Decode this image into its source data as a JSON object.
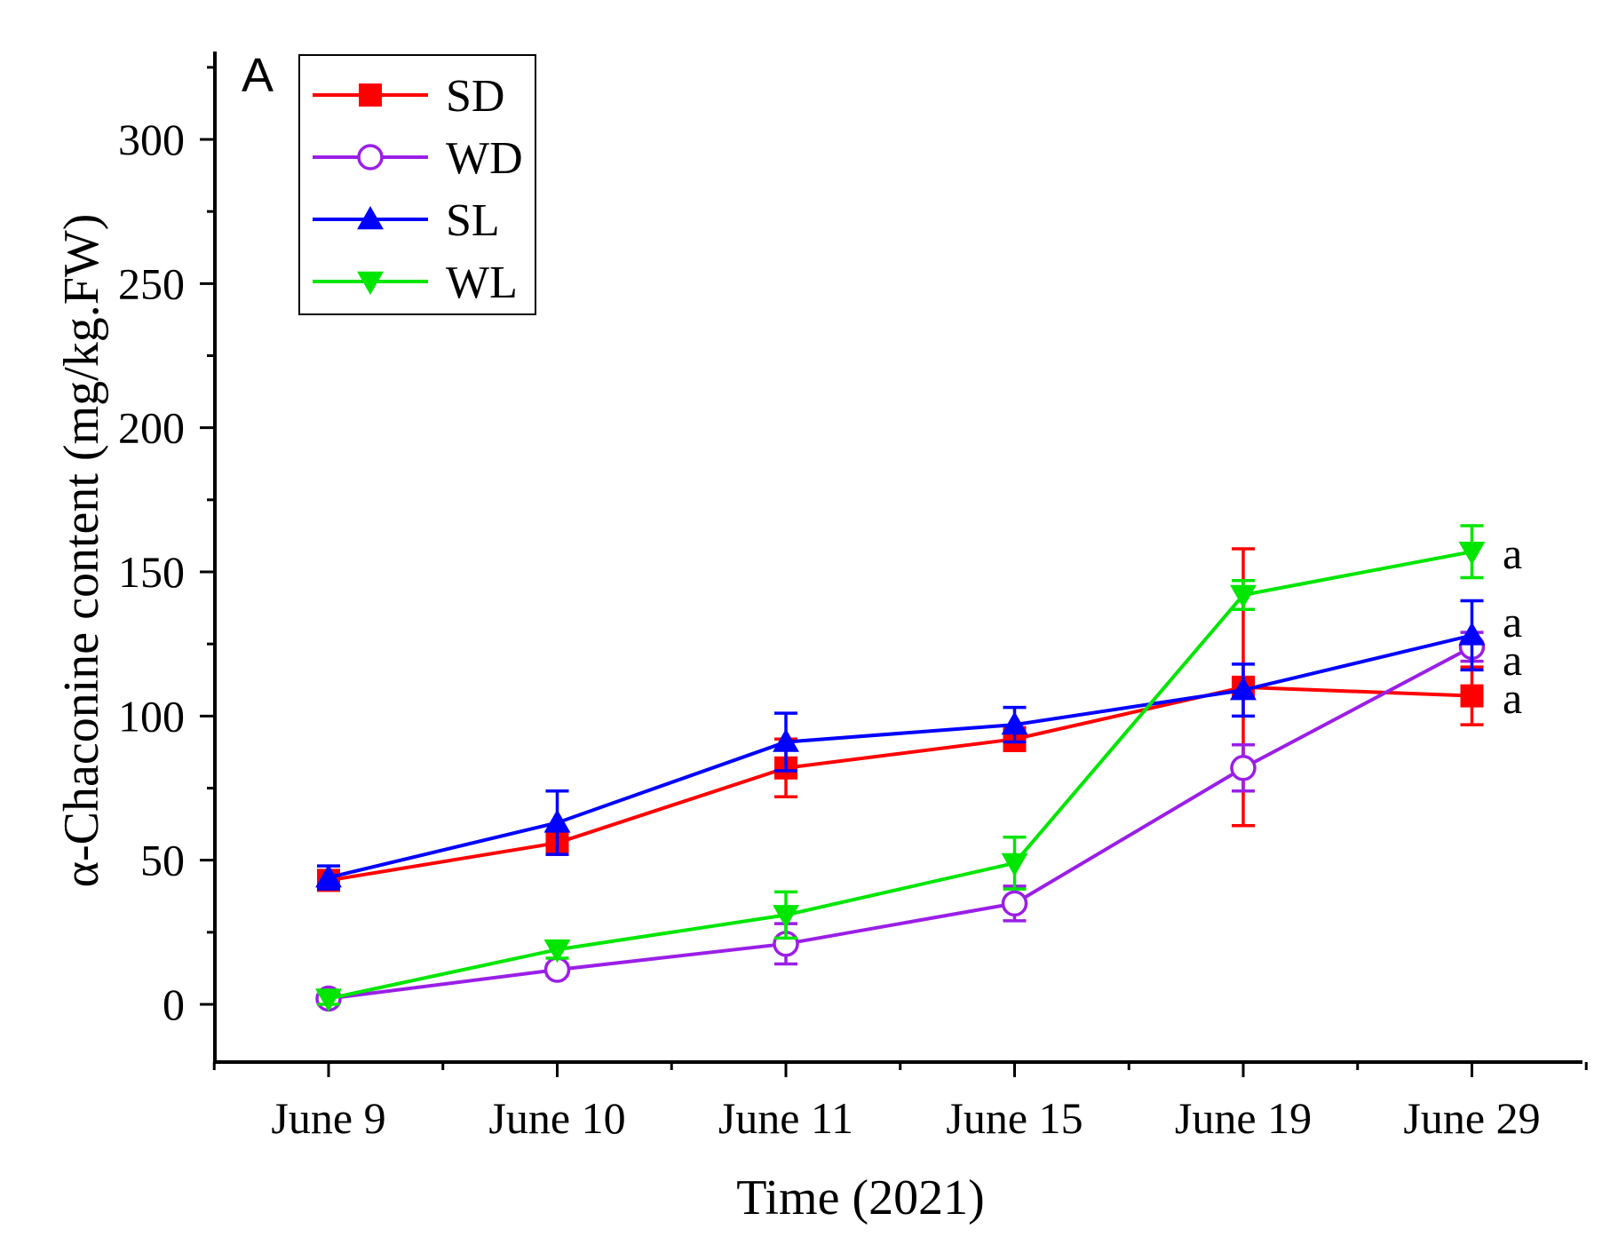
{
  "chart_data": {
    "type": "line",
    "panel_label": "A",
    "xlabel": "Time (2021)",
    "ylabel": "α-Chaconine content (mg/kg.FW)",
    "categories": [
      "June 9",
      "June 10",
      "June 11",
      "June 15",
      "June 19",
      "June 29"
    ],
    "ylim": [
      -20,
      330
    ],
    "yticks": [
      0,
      50,
      100,
      150,
      200,
      250,
      300
    ],
    "yminor_step": 25,
    "grid": false,
    "legend_position": "top-left",
    "series": [
      {
        "name": "SD",
        "color": "#ff0000",
        "marker": "square-filled",
        "values": [
          43,
          56,
          82,
          92,
          110,
          107
        ],
        "errors": [
          2,
          4,
          10,
          4,
          48,
          10
        ],
        "significance": "a"
      },
      {
        "name": "WD",
        "color": "#9a1fe6",
        "marker": "circle-open",
        "values": [
          2,
          12,
          21,
          35,
          82,
          124
        ],
        "errors": [
          1,
          2,
          7,
          6,
          8,
          5
        ],
        "significance": "a"
      },
      {
        "name": "SL",
        "color": "#0000ff",
        "marker": "triangle-up-filled",
        "values": [
          44,
          63,
          91,
          97,
          109,
          128
        ],
        "errors": [
          4,
          11,
          10,
          6,
          9,
          12
        ],
        "significance": "a"
      },
      {
        "name": "WL",
        "color": "#00e600",
        "marker": "triangle-down-filled",
        "values": [
          2,
          19,
          31,
          49,
          142,
          157
        ],
        "errors": [
          2,
          3,
          8,
          9,
          5,
          9
        ],
        "significance": "a"
      }
    ]
  }
}
